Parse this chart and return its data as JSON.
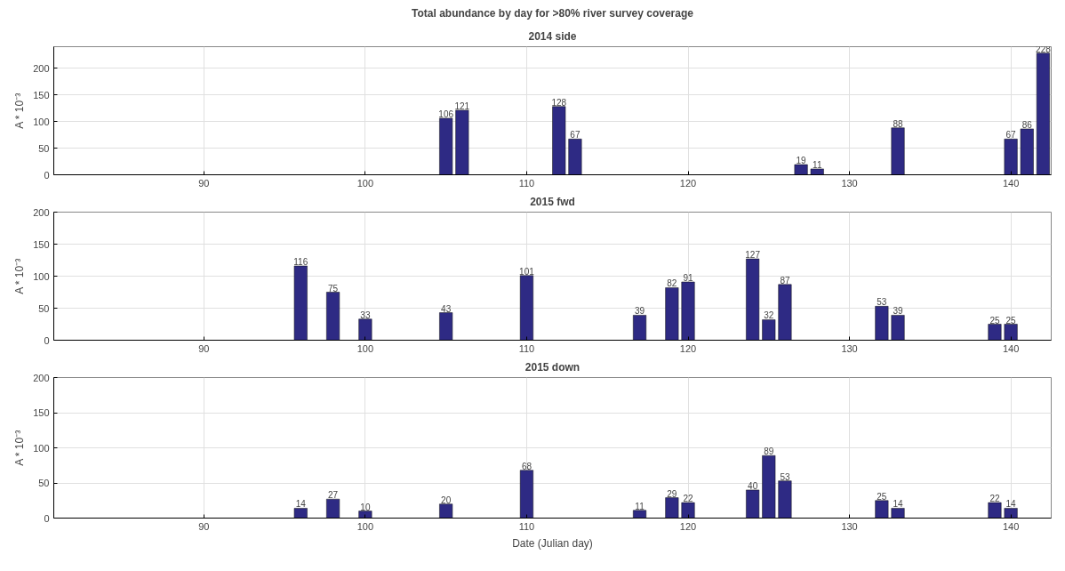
{
  "chart_data": [
    {
      "type": "bar",
      "title": "Total abundance by day for >80% river survey coverage",
      "subtitle": "2014 side",
      "ylabel": "A * 10⁻³",
      "x": [
        105,
        106,
        112,
        113,
        127,
        128,
        133,
        140,
        141,
        142
      ],
      "series": [
        {
          "color": "#2e2a84",
          "values": [
            106,
            121,
            128,
            67,
            19,
            11,
            88,
            67,
            86,
            228
          ]
        }
      ],
      "xlim": [
        80.7,
        142.5
      ],
      "xticks": [
        90,
        100,
        110,
        120,
        130,
        140
      ],
      "ylim": [
        0,
        240
      ],
      "yticks": [
        0,
        50,
        100,
        150,
        200
      ],
      "grid": true,
      "data_labels": true
    },
    {
      "type": "bar",
      "title": "2015 fwd",
      "ylabel": "A * 10⁻³",
      "x": [
        96,
        98,
        100,
        105,
        110,
        117,
        119,
        120,
        124,
        125,
        126,
        132,
        133,
        139,
        140
      ],
      "series": [
        {
          "color": "#2e2a84",
          "values": [
            116,
            75,
            33,
            43,
            101,
            39,
            82,
            91,
            127,
            32,
            87,
            53,
            39,
            25,
            25
          ]
        }
      ],
      "xlim": [
        80.7,
        142.5
      ],
      "xticks": [
        90,
        100,
        110,
        120,
        130,
        140
      ],
      "ylim": [
        0,
        200
      ],
      "yticks": [
        0,
        50,
        100,
        150,
        200
      ],
      "grid": true,
      "data_labels": true
    },
    {
      "type": "bar",
      "title": "2015 down",
      "ylabel": "A * 10⁻³",
      "xlabel": "Date (Julian day)",
      "x": [
        96,
        98,
        100,
        105,
        110,
        117,
        119,
        120,
        124,
        125,
        126,
        132,
        133,
        139,
        140
      ],
      "series": [
        {
          "color": "#2e2a84",
          "values": [
            14,
            27,
            10,
            20,
            68,
            11,
            29,
            22,
            40,
            89,
            53,
            25,
            14,
            22,
            14
          ]
        }
      ],
      "xlim": [
        80.7,
        142.5
      ],
      "xticks": [
        90,
        100,
        110,
        120,
        130,
        140
      ],
      "ylim": [
        0,
        200
      ],
      "yticks": [
        0,
        50,
        100,
        150,
        200
      ],
      "grid": true,
      "data_labels": true
    }
  ]
}
